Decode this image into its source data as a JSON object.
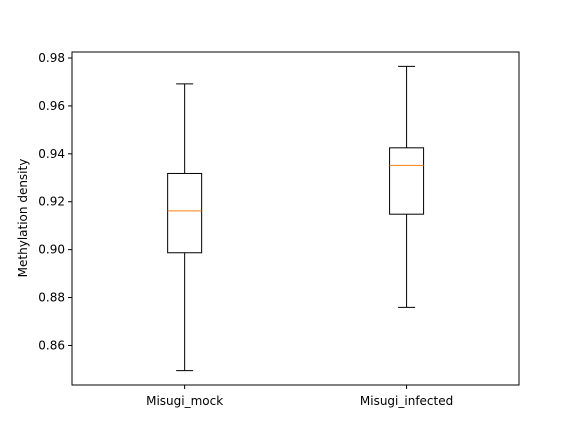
{
  "chart_data": {
    "type": "boxplot",
    "title": "",
    "xlabel": "",
    "ylabel": "Methylation density",
    "ylim": [
      0.8435,
      0.9825
    ],
    "yticks": [
      0.86,
      0.88,
      0.9,
      0.92,
      0.94,
      0.96,
      0.98
    ],
    "ytick_labels": [
      "0.86",
      "0.88",
      "0.90",
      "0.92",
      "0.94",
      "0.96",
      "0.98"
    ],
    "grid": false,
    "legend": "none",
    "categories": [
      "Misugi_mock",
      "Misugi_infected"
    ],
    "boxes": [
      {
        "label": "Misugi_mock",
        "whisker_low": 0.8495,
        "q1": 0.8987,
        "median": 0.9162,
        "q3": 0.9318,
        "whisker_high": 0.9692
      },
      {
        "label": "Misugi_infected",
        "whisker_low": 0.8759,
        "q1": 0.9148,
        "median": 0.9352,
        "q3": 0.9425,
        "whisker_high": 0.9765
      }
    ],
    "colors": {
      "box": "#000000",
      "median": "#ff7f0e",
      "axis": "#000000"
    }
  }
}
